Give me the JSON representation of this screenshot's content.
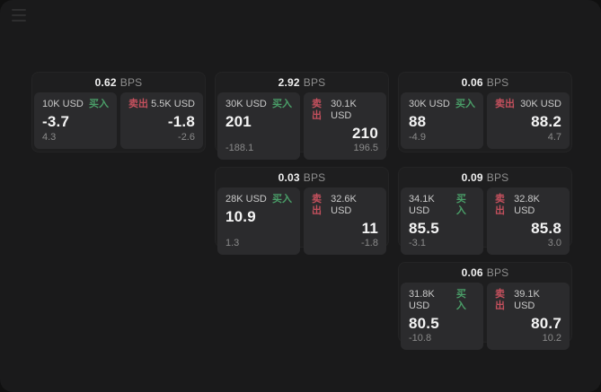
{
  "labels": {
    "buy": "买入",
    "sell": "卖出",
    "bps_unit": "BPS"
  },
  "colors": {
    "buy_green": "#4a9e68",
    "sell_red": "#c4505d",
    "surface": "#1a1a1b",
    "card": "#1e1e1f",
    "panel": "#2b2b2d"
  },
  "menu": {
    "icon": "hamburger-menu-icon"
  },
  "cards": [
    {
      "bps": "0.62",
      "buy": {
        "amount": "10K USD",
        "main": "-3.7",
        "sub": "4.3"
      },
      "sell": {
        "amount": "5.5K USD",
        "main": "-1.8",
        "sub": "-2.6"
      }
    },
    {
      "bps": "2.92",
      "buy": {
        "amount": "30K USD",
        "main": "201",
        "sub": "-188.1"
      },
      "sell": {
        "amount": "30.1K USD",
        "main": "210",
        "sub": "196.5"
      }
    },
    {
      "bps": "0.06",
      "buy": {
        "amount": "30K USD",
        "main": "88",
        "sub": "-4.9"
      },
      "sell": {
        "amount": "30K USD",
        "main": "88.2",
        "sub": "4.7"
      }
    },
    {
      "bps": "0.03",
      "buy": {
        "amount": "28K USD",
        "main": "10.9",
        "sub": "1.3"
      },
      "sell": {
        "amount": "32.6K USD",
        "main": "11",
        "sub": "-1.8"
      }
    },
    {
      "bps": "0.09",
      "buy": {
        "amount": "34.1K USD",
        "main": "85.5",
        "sub": "-3.1"
      },
      "sell": {
        "amount": "32.8K USD",
        "main": "85.8",
        "sub": "3.0"
      }
    },
    {
      "bps": "0.06",
      "buy": {
        "amount": "31.8K USD",
        "main": "80.5",
        "sub": "-10.8"
      },
      "sell": {
        "amount": "39.1K USD",
        "main": "80.7",
        "sub": "10.2"
      }
    }
  ]
}
